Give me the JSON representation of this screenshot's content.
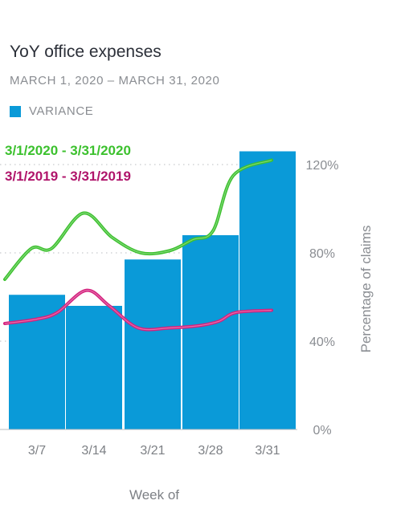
{
  "chart_data": {
    "type": "bar",
    "title": "YoY office expenses",
    "subtitle": "MARCH 1, 2020 – MARCH 31, 2020",
    "legend": [
      {
        "name": "VARIANCE",
        "color": "#0a9ad8"
      }
    ],
    "categories": [
      "3/7",
      "3/14",
      "3/21",
      "3/28",
      "3/31"
    ],
    "bars": {
      "name": "VARIANCE",
      "color": "#0a9ad8",
      "values": [
        61,
        56,
        77,
        88,
        126
      ]
    },
    "lines": [
      {
        "name": "3/1/2020 - 3/31/2020",
        "color": "#3cc12e",
        "x": [
          0,
          0.35,
          0.7,
          1.25,
          1.75,
          2.25,
          2.75,
          3.15,
          3.5,
          3.85,
          4.2
        ],
        "y": [
          68,
          82,
          82,
          98,
          87,
          80,
          81,
          86,
          90,
          115,
          122
        ]
      },
      {
        "name": "3/1/2019 - 3/31/2019",
        "color": "#d4207d",
        "x": [
          0,
          0.45,
          0.8,
          1.3,
          1.7,
          2.2,
          2.75,
          3.25,
          3.6,
          3.9,
          4.2
        ],
        "y": [
          48,
          50,
          53,
          63,
          56,
          46,
          46,
          47,
          49,
          53,
          54
        ]
      }
    ],
    "yticks": [
      "0%",
      "40%",
      "80%",
      "120%"
    ],
    "ytick_values": [
      0,
      40,
      80,
      120
    ],
    "ylim": [
      0,
      130
    ],
    "ylabel": "Percentage of claims",
    "xlabel": "Week of",
    "y_axis_position": "right",
    "grid": "dotted horizontal"
  }
}
